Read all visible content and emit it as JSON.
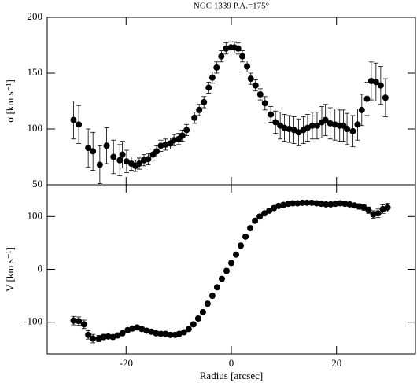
{
  "chart_data": [
    {
      "type": "scatter",
      "title": "NGC 1339   P.A.=175°",
      "y_label": "σ [km s⁻¹]",
      "color": "#000000",
      "xlim": [
        -35,
        35
      ],
      "xticks": [
        -20,
        0,
        20
      ],
      "ylim": [
        50,
        200
      ],
      "yticks": [
        50,
        100,
        150,
        200
      ],
      "x": [
        -30,
        -29,
        -27.2,
        -26.3,
        -25,
        -23.7,
        -22.4,
        -21.2,
        -20.7,
        -19.9,
        -19,
        -18.2,
        -17.5,
        -16.6,
        -15.8,
        -14.9,
        -14.2,
        -13.4,
        -12.5,
        -11.6,
        -10.9,
        -10,
        -9.3,
        -8.5,
        -7,
        -6.1,
        -5.2,
        -4.3,
        -3.6,
        -2.8,
        -1.9,
        -1,
        -0.1,
        0.6,
        1.3,
        2.1,
        3,
        3.7,
        4.6,
        5.5,
        6.4,
        7.5,
        8.4,
        9.3,
        10.1,
        11,
        11.9,
        12.8,
        13.7,
        14.5,
        15.4,
        16.3,
        17.2,
        17.9,
        18.8,
        19.7,
        20.6,
        21.3,
        22,
        23.1,
        24,
        24.8,
        25.8,
        26.6,
        27.5,
        28.4,
        29.3
      ],
      "values": [
        108,
        104,
        83,
        80,
        68,
        85,
        75,
        72,
        77,
        71,
        69,
        67,
        69,
        72,
        73,
        77,
        80,
        85,
        86,
        87,
        90,
        91,
        94,
        99,
        110,
        117,
        124,
        137,
        146,
        155,
        165,
        172,
        173,
        173,
        172,
        165,
        156,
        145,
        139,
        131,
        123,
        113,
        106,
        103,
        101,
        100,
        99,
        97,
        99,
        101,
        103,
        103,
        106,
        108,
        105,
        104,
        103,
        103,
        100,
        98,
        104,
        117,
        127,
        143,
        142,
        139,
        128
      ],
      "errors": [
        17,
        17,
        17,
        17,
        17,
        16,
        15,
        14,
        12,
        10,
        6,
        5,
        5,
        5,
        5,
        5,
        5,
        5,
        5,
        5,
        5,
        5,
        5,
        5,
        5,
        5,
        5,
        5,
        5,
        5,
        5,
        5,
        5,
        5,
        5,
        5,
        5,
        5,
        5,
        5,
        6,
        7,
        10,
        12,
        12,
        12,
        12,
        12,
        12,
        12,
        12,
        12,
        14,
        14,
        14,
        14,
        14,
        14,
        14,
        14,
        14,
        14,
        15,
        17,
        17,
        17,
        17
      ]
    },
    {
      "type": "scatter",
      "y_label": "V [km s⁻¹]",
      "x_label": "Radius [arcsec]",
      "color": "#000000",
      "xlim": [
        -35,
        35
      ],
      "xticks": [
        -20,
        0,
        20
      ],
      "ylim": [
        -160,
        160
      ],
      "yticks": [
        -100,
        0,
        100
      ],
      "x": [
        -30,
        -29,
        -28,
        -27.2,
        -26.3,
        -25.2,
        -24.3,
        -23.4,
        -22.5,
        -21.6,
        -20.7,
        -19.7,
        -18.8,
        -17.9,
        -17,
        -16.1,
        -15.2,
        -14.3,
        -13.4,
        -12.5,
        -11.6,
        -10.7,
        -9.9,
        -9,
        -8.1,
        -7.2,
        -6.3,
        -5.4,
        -4.5,
        -3.6,
        -2.7,
        -1.8,
        -0.9,
        0,
        0.9,
        1.8,
        2.7,
        3.6,
        4.5,
        5.4,
        6.3,
        7.2,
        8.1,
        9,
        9.9,
        10.8,
        11.7,
        12.6,
        13.5,
        14.4,
        15.3,
        16.2,
        17.1,
        18,
        18.9,
        19.8,
        20.7,
        21.6,
        22.5,
        23.4,
        24.3,
        25.2,
        26.1,
        27,
        27.9,
        28.8,
        29.7
      ],
      "values": [
        -97,
        -98,
        -104,
        -124,
        -131,
        -131,
        -128,
        -127,
        -128,
        -125,
        -121,
        -115,
        -112,
        -110,
        -113,
        -116,
        -118,
        -121,
        -122,
        -122,
        -124,
        -124,
        -122,
        -119,
        -113,
        -104,
        -93,
        -81,
        -65,
        -50,
        -34,
        -18,
        -3,
        12,
        28,
        45,
        62,
        78,
        92,
        100,
        106,
        111,
        116,
        120,
        122,
        124,
        125,
        125,
        126,
        126,
        126,
        125,
        124,
        123,
        123,
        124,
        125,
        124,
        123,
        121,
        119,
        117,
        112,
        104,
        106,
        114,
        117
      ],
      "errors": [
        8,
        8,
        8,
        8,
        8,
        6,
        5,
        4,
        4,
        4,
        4,
        4,
        4,
        4,
        4,
        4,
        4,
        4,
        4,
        4,
        4,
        4,
        4,
        4,
        4,
        4,
        4,
        4,
        4,
        4,
        4,
        4,
        4,
        4,
        4,
        4,
        4,
        4,
        4,
        4,
        4,
        4,
        4,
        4,
        4,
        4,
        4,
        4,
        4,
        4,
        4,
        4,
        4,
        4,
        4,
        4,
        4,
        4,
        4,
        4,
        5,
        5,
        6,
        7,
        8,
        8,
        8
      ]
    }
  ]
}
